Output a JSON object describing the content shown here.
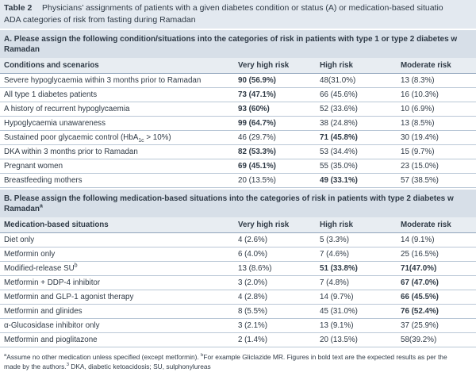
{
  "caption": {
    "label": "Table 2",
    "lines": [
      "Physicians’ assignments of patients with a given diabetes condition or status (A) or medication-based situatio",
      "ADA categories of risk from fasting during Ramadan"
    ]
  },
  "sections": [
    {
      "heading": [
        "A.  Please assign the following condition/situations into the categories of risk in patients with type 1 or type 2 diabetes w",
        "Ramadan"
      ],
      "columns": [
        "Conditions and scenarios",
        "Very high risk",
        "High risk",
        "Moderate risk"
      ],
      "rows": [
        {
          "cells": [
            "Severe hypoglycaemia within 3 months prior to Ramadan",
            "90 (56.9%)",
            "48(31.0%)",
            "13 (8.3%)"
          ],
          "bold": [
            1
          ]
        },
        {
          "cells": [
            "All type 1 diabetes patients",
            "73 (47.1%)",
            "66 (45.6%)",
            "16 (10.3%)"
          ],
          "bold": [
            1
          ]
        },
        {
          "cells": [
            "A history of recurrent hypoglycaemia",
            "93 (60%)",
            "52 (33.6%)",
            "10 (6.9%)"
          ],
          "bold": [
            1
          ]
        },
        {
          "cells": [
            "Hypoglycaemia unawareness",
            "99 (64.7%)",
            "38 (24.8%)",
            "13 (8.5%)"
          ],
          "bold": [
            1
          ]
        },
        {
          "cells": [
            [
              {
                "text": "Sustained poor glycaemic control (HbA"
              },
              {
                "text": "1c",
                "style": "sub"
              },
              {
                "text": " > 10%)"
              }
            ],
            "46 (29.7%)",
            "71 (45.8%)",
            "30 (19.4%)"
          ],
          "bold": [
            2
          ]
        },
        {
          "cells": [
            "DKA within 3 months prior to Ramadan",
            "82 (53.3%)",
            "53 (34.4%)",
            "15 (9.7%)"
          ],
          "bold": [
            1
          ]
        },
        {
          "cells": [
            "Pregnant women",
            "69 (45.1%)",
            "55 (35.0%)",
            "23 (15.0%)"
          ],
          "bold": [
            1
          ]
        },
        {
          "cells": [
            "Breastfeeding mothers",
            "20 (13.5%)",
            "49 (33.1%)",
            "57 (38.5%)"
          ],
          "bold": [
            2
          ]
        }
      ]
    },
    {
      "heading": [
        "B.  Please assign the following medication-based situations into the categories of risk in patients with type 2 diabetes w",
        [
          {
            "text": "Ramadan"
          },
          {
            "text": "a",
            "style": "sup"
          }
        ]
      ],
      "columns": [
        "Medication-based situations",
        "Very high risk",
        "High risk",
        "Moderate risk"
      ],
      "rows": [
        {
          "cells": [
            "Diet only",
            "4 (2.6%)",
            "5 (3.3%)",
            "14 (9.1%)"
          ],
          "bold": []
        },
        {
          "cells": [
            "Metformin only",
            "6 (4.0%)",
            "7 (4.6%)",
            "25 (16.5%)"
          ],
          "bold": []
        },
        {
          "cells": [
            [
              {
                "text": "Modified-release SU"
              },
              {
                "text": "b",
                "style": "sup"
              }
            ],
            "13 (8.6%)",
            "51 (33.8%)",
            "71(47.0%)"
          ],
          "bold": [
            2,
            3
          ]
        },
        {
          "cells": [
            "Metformin + DDP-4 inhibitor",
            "3 (2.0%)",
            "7 (4.8%)",
            "67 (47.0%)"
          ],
          "bold": [
            3
          ]
        },
        {
          "cells": [
            "Metformin and GLP-1 agonist therapy",
            "4 (2.8%)",
            "14 (9.7%)",
            "66 (45.5%)"
          ],
          "bold": [
            3
          ]
        },
        {
          "cells": [
            "Metformin and glinides",
            "8 (5.5%)",
            "45 (31.0%)",
            "76 (52.4%)"
          ],
          "bold": [
            3
          ]
        },
        {
          "cells": [
            "α-Glucosidase inhibitor only",
            "3 (2.1%)",
            "13 (9.1%)",
            "37 (25.9%)"
          ],
          "bold": []
        },
        {
          "cells": [
            "Metformin and pioglitazone",
            "2 (1.4%)",
            "20 (13.5%)",
            "58(39.2%)"
          ],
          "bold": []
        }
      ]
    }
  ],
  "footnote": [
    [
      {
        "text": "a",
        "style": "sup"
      },
      {
        "text": "Assume no other medication unless specified (except metformin).  "
      },
      {
        "text": "b",
        "style": "sup"
      },
      {
        "text": "For example Gliclazide MR.  Figures in bold text are the expected results as per the"
      }
    ],
    [
      {
        "text": "made by the authors."
      },
      {
        "text": "3",
        "style": "sup"
      },
      {
        "text": "  DKA, diabetic ketoacidosis; SU, sulphonylureas"
      }
    ]
  ]
}
